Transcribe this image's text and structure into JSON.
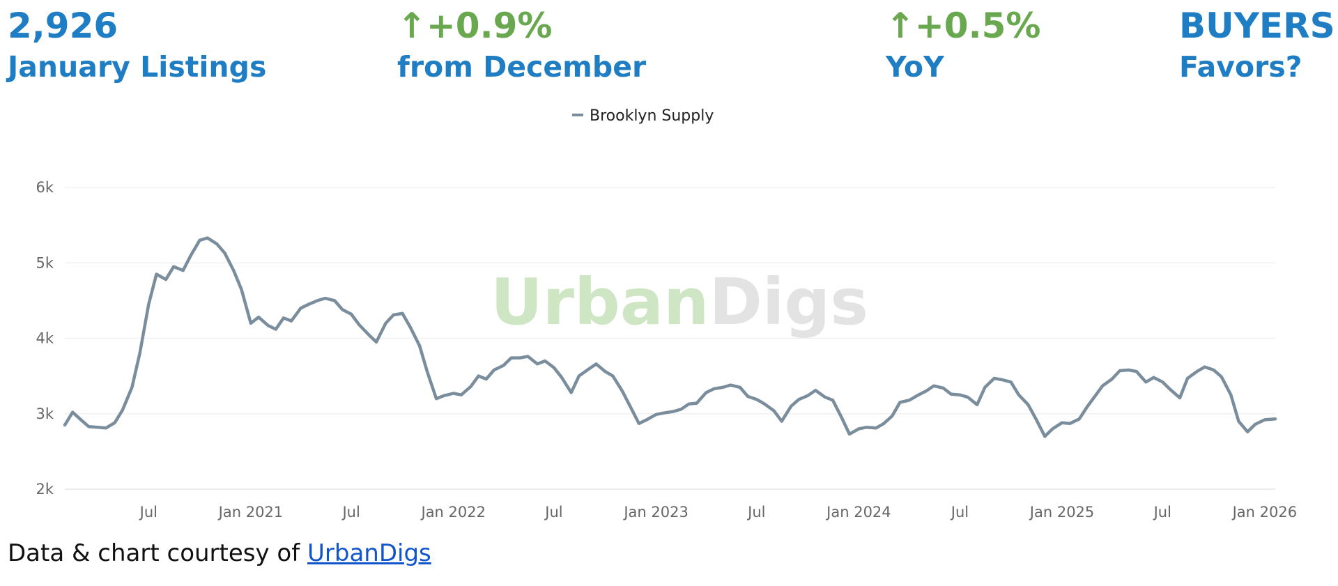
{
  "stats": [
    {
      "value": "2,926",
      "label": "January Listings",
      "value_color": "#1f7dc4"
    },
    {
      "value": "↑+0.9%",
      "label": "from December",
      "value_color": "#6aa84f"
    },
    {
      "value": "↑+0.5%",
      "label": "YoY",
      "value_color": "#6aa84f"
    },
    {
      "value": "BUYERS",
      "label": "Favors?",
      "value_color": "#1f7dc4"
    }
  ],
  "watermark": {
    "part1": "Urban",
    "part2": "Digs",
    "color1": "#cfe6c4",
    "color2": "#e3e3e3"
  },
  "footer": {
    "text": "Data & chart courtesy of ",
    "link_text": "UrbanDigs"
  },
  "chart_data": {
    "type": "line",
    "legend": {
      "position": "top-center"
    },
    "grid": true,
    "line_color": "#7a8d9c",
    "ylim": [
      2000,
      6000
    ],
    "y_ticks": [
      {
        "value": 2000,
        "label": "2k"
      },
      {
        "value": 3000,
        "label": "3k"
      },
      {
        "value": 4000,
        "label": "4k"
      },
      {
        "value": 5000,
        "label": "5k"
      },
      {
        "value": 6000,
        "label": "6k"
      }
    ],
    "xlim": [
      "2020-02-01",
      "2026-01-20"
    ],
    "x_ticks": [
      {
        "date": "2020-07-01",
        "label": "Jul"
      },
      {
        "date": "2021-01-01",
        "label": "Jan 2021"
      },
      {
        "date": "2021-07-01",
        "label": "Jul"
      },
      {
        "date": "2022-01-01",
        "label": "Jan 2022"
      },
      {
        "date": "2022-07-01",
        "label": "Jul"
      },
      {
        "date": "2023-01-01",
        "label": "Jan 2023"
      },
      {
        "date": "2023-07-01",
        "label": "Jul"
      },
      {
        "date": "2024-01-01",
        "label": "Jan 2024"
      },
      {
        "date": "2024-07-01",
        "label": "Jul"
      },
      {
        "date": "2025-01-01",
        "label": "Jan 2025"
      },
      {
        "date": "2025-07-01",
        "label": "Jul"
      },
      {
        "date": "2026-01-01",
        "label": "Jan 2026"
      }
    ],
    "series": [
      {
        "name": "Brooklyn Supply",
        "points": [
          [
            "2020-02-01",
            2850
          ],
          [
            "2020-02-15",
            3020
          ],
          [
            "2020-03-01",
            2920
          ],
          [
            "2020-03-15",
            2830
          ],
          [
            "2020-04-01",
            2820
          ],
          [
            "2020-04-15",
            2810
          ],
          [
            "2020-05-01",
            2880
          ],
          [
            "2020-05-15",
            3050
          ],
          [
            "2020-06-01",
            3350
          ],
          [
            "2020-06-15",
            3800
          ],
          [
            "2020-07-01",
            4450
          ],
          [
            "2020-07-15",
            4850
          ],
          [
            "2020-08-01",
            4780
          ],
          [
            "2020-08-15",
            4950
          ],
          [
            "2020-09-01",
            4900
          ],
          [
            "2020-09-15",
            5100
          ],
          [
            "2020-10-01",
            5300
          ],
          [
            "2020-10-15",
            5330
          ],
          [
            "2020-11-01",
            5250
          ],
          [
            "2020-11-15",
            5130
          ],
          [
            "2020-12-01",
            4900
          ],
          [
            "2020-12-15",
            4650
          ],
          [
            "2021-01-01",
            4200
          ],
          [
            "2021-01-15",
            4280
          ],
          [
            "2021-02-01",
            4170
          ],
          [
            "2021-02-15",
            4120
          ],
          [
            "2021-03-01",
            4270
          ],
          [
            "2021-03-15",
            4230
          ],
          [
            "2021-04-01",
            4400
          ],
          [
            "2021-04-15",
            4450
          ],
          [
            "2021-05-01",
            4500
          ],
          [
            "2021-05-15",
            4530
          ],
          [
            "2021-06-01",
            4500
          ],
          [
            "2021-06-15",
            4380
          ],
          [
            "2021-07-01",
            4320
          ],
          [
            "2021-07-15",
            4180
          ],
          [
            "2021-08-01",
            4050
          ],
          [
            "2021-08-15",
            3950
          ],
          [
            "2021-09-01",
            4200
          ],
          [
            "2021-09-15",
            4310
          ],
          [
            "2021-10-01",
            4330
          ],
          [
            "2021-10-15",
            4150
          ],
          [
            "2021-11-01",
            3900
          ],
          [
            "2021-11-15",
            3550
          ],
          [
            "2021-12-01",
            3200
          ],
          [
            "2021-12-15",
            3240
          ],
          [
            "2022-01-01",
            3270
          ],
          [
            "2022-01-15",
            3250
          ],
          [
            "2022-02-01",
            3360
          ],
          [
            "2022-02-15",
            3500
          ],
          [
            "2022-03-01",
            3460
          ],
          [
            "2022-03-15",
            3580
          ],
          [
            "2022-04-01",
            3640
          ],
          [
            "2022-04-15",
            3740
          ],
          [
            "2022-05-01",
            3740
          ],
          [
            "2022-05-15",
            3760
          ],
          [
            "2022-06-01",
            3660
          ],
          [
            "2022-06-15",
            3700
          ],
          [
            "2022-07-01",
            3610
          ],
          [
            "2022-07-15",
            3480
          ],
          [
            "2022-08-01",
            3280
          ],
          [
            "2022-08-15",
            3500
          ],
          [
            "2022-09-01",
            3590
          ],
          [
            "2022-09-15",
            3660
          ],
          [
            "2022-10-01",
            3560
          ],
          [
            "2022-10-15",
            3500
          ],
          [
            "2022-11-01",
            3300
          ],
          [
            "2022-11-15",
            3100
          ],
          [
            "2022-12-01",
            2870
          ],
          [
            "2022-12-15",
            2920
          ],
          [
            "2023-01-01",
            2990
          ],
          [
            "2023-01-15",
            3010
          ],
          [
            "2023-02-01",
            3030
          ],
          [
            "2023-02-15",
            3060
          ],
          [
            "2023-03-01",
            3130
          ],
          [
            "2023-03-15",
            3140
          ],
          [
            "2023-04-01",
            3280
          ],
          [
            "2023-04-15",
            3330
          ],
          [
            "2023-05-01",
            3350
          ],
          [
            "2023-05-15",
            3380
          ],
          [
            "2023-06-01",
            3350
          ],
          [
            "2023-06-15",
            3230
          ],
          [
            "2023-07-01",
            3190
          ],
          [
            "2023-07-15",
            3130
          ],
          [
            "2023-08-01",
            3040
          ],
          [
            "2023-08-15",
            2900
          ],
          [
            "2023-09-01",
            3100
          ],
          [
            "2023-09-15",
            3190
          ],
          [
            "2023-10-01",
            3240
          ],
          [
            "2023-10-15",
            3310
          ],
          [
            "2023-11-01",
            3220
          ],
          [
            "2023-11-15",
            3180
          ],
          [
            "2023-12-01",
            2950
          ],
          [
            "2023-12-15",
            2730
          ],
          [
            "2024-01-01",
            2800
          ],
          [
            "2024-01-15",
            2820
          ],
          [
            "2024-02-01",
            2810
          ],
          [
            "2024-02-15",
            2870
          ],
          [
            "2024-03-01",
            2970
          ],
          [
            "2024-03-15",
            3150
          ],
          [
            "2024-04-01",
            3180
          ],
          [
            "2024-04-15",
            3240
          ],
          [
            "2024-05-01",
            3300
          ],
          [
            "2024-05-15",
            3370
          ],
          [
            "2024-06-01",
            3340
          ],
          [
            "2024-06-15",
            3260
          ],
          [
            "2024-07-01",
            3250
          ],
          [
            "2024-07-15",
            3220
          ],
          [
            "2024-08-01",
            3120
          ],
          [
            "2024-08-15",
            3350
          ],
          [
            "2024-09-01",
            3470
          ],
          [
            "2024-09-15",
            3450
          ],
          [
            "2024-10-01",
            3420
          ],
          [
            "2024-10-15",
            3250
          ],
          [
            "2024-11-01",
            3120
          ],
          [
            "2024-11-15",
            2930
          ],
          [
            "2024-12-01",
            2700
          ],
          [
            "2024-12-15",
            2800
          ],
          [
            "2025-01-01",
            2880
          ],
          [
            "2025-01-15",
            2870
          ],
          [
            "2025-02-01",
            2930
          ],
          [
            "2025-02-15",
            3090
          ],
          [
            "2025-03-01",
            3230
          ],
          [
            "2025-03-15",
            3370
          ],
          [
            "2025-04-01",
            3460
          ],
          [
            "2025-04-15",
            3570
          ],
          [
            "2025-05-01",
            3580
          ],
          [
            "2025-05-15",
            3560
          ],
          [
            "2025-06-01",
            3420
          ],
          [
            "2025-06-15",
            3480
          ],
          [
            "2025-07-01",
            3420
          ],
          [
            "2025-07-15",
            3320
          ],
          [
            "2025-08-01",
            3210
          ],
          [
            "2025-08-15",
            3470
          ],
          [
            "2025-09-01",
            3560
          ],
          [
            "2025-09-15",
            3620
          ],
          [
            "2025-10-01",
            3580
          ],
          [
            "2025-10-15",
            3490
          ],
          [
            "2025-11-01",
            3250
          ],
          [
            "2025-11-15",
            2900
          ],
          [
            "2025-12-01",
            2760
          ],
          [
            "2025-12-15",
            2860
          ],
          [
            "2026-01-01",
            2920
          ],
          [
            "2026-01-20",
            2930
          ]
        ]
      }
    ]
  }
}
